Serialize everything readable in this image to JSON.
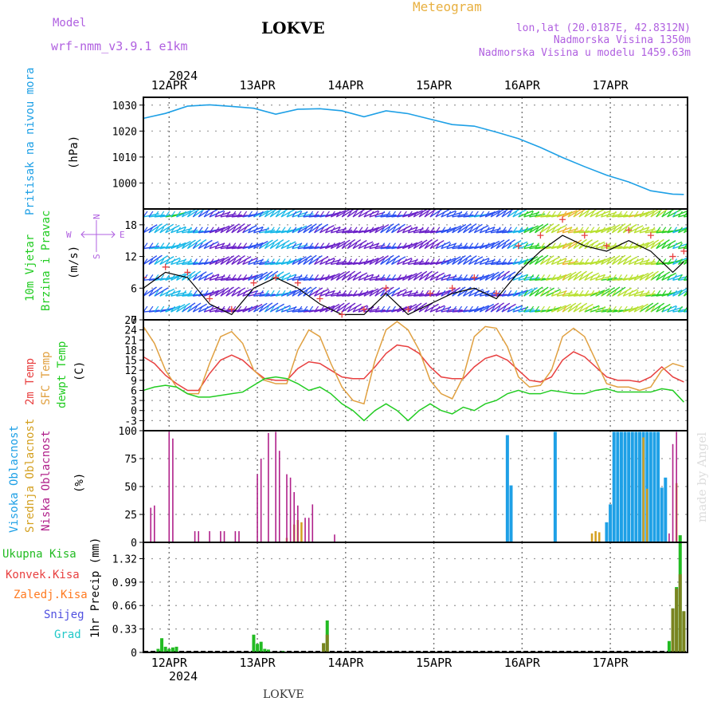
{
  "header": {
    "model_label": "Model",
    "model_name": "wrf-nmm_v3.9.1  e1km",
    "station": "LOKVE",
    "title": "Meteogram",
    "lonlat": "lon,lat (20.0187E, 42.8312N)",
    "alt_real": "Nadmorska Visina 1350m",
    "alt_model": "Nadmorska Visina u modelu 1459.63m",
    "year_top": "2024",
    "year_bottom": "2024",
    "footer": "LOKVE",
    "watermark": "made by Angel"
  },
  "colors": {
    "pressure": "#1ea0e6",
    "t2m": "#e84040",
    "tsfc": "#e0a040",
    "dewpt": "#22cc22",
    "cloud_high": "#1ea0e6",
    "cloud_mid": "#d4a020",
    "cloud_low": "#b0208a",
    "rain_total": "#22bb22",
    "rain_conv": "#e84040",
    "rain_frz": "#ff7a20",
    "snow": "#5050e0",
    "hail": "#20c8c8",
    "wind_label": "#22cc22",
    "wind_dir": "#b060e0"
  },
  "chart_data": [
    {
      "type": "line",
      "panel": "pressure",
      "ylabel": [
        "Pritisak na nivou mora",
        "(hPa)"
      ],
      "xticks": [
        "12APR",
        "13APR",
        "14APR",
        "15APR",
        "16APR",
        "17APR"
      ],
      "ylim": [
        990,
        1033
      ],
      "yticks": [
        1000,
        1010,
        1020,
        1030
      ],
      "grid": true,
      "x": [
        0,
        6,
        12,
        18,
        24,
        30,
        36,
        42,
        48,
        54,
        60,
        66,
        72,
        78,
        84,
        90,
        96,
        102,
        108,
        114,
        120,
        126,
        132,
        138,
        144,
        147
      ],
      "values": [
        1024.9,
        1026.8,
        1029.6,
        1030.1,
        1029.5,
        1028.8,
        1026.5,
        1028.4,
        1028.6,
        1027.8,
        1025.5,
        1027.8,
        1026.7,
        1024.6,
        1022.5,
        1021.9,
        1019.6,
        1017.1,
        1013.7,
        1009.8,
        1006.3,
        1003.0,
        1000.4,
        997.0,
        995.7,
        995.6
      ]
    },
    {
      "type": "barbs",
      "panel": "wind",
      "ylabel": [
        "10m Vjetar",
        "Brzina i Pravac",
        "(m/s)"
      ],
      "compass": [
        "N",
        "W",
        "E",
        "S"
      ],
      "ylim": [
        0,
        21
      ],
      "yticks": [
        0,
        6,
        12,
        18
      ],
      "x": [
        0,
        6,
        12,
        18,
        24,
        30,
        36,
        42,
        48,
        54,
        60,
        66,
        72,
        78,
        84,
        90,
        96,
        102,
        108,
        114,
        120,
        126,
        132,
        138,
        144,
        147
      ],
      "speed": [
        6,
        9,
        8,
        3,
        1,
        6,
        8,
        6,
        3,
        1,
        1,
        5,
        1,
        3,
        5,
        6,
        4,
        9,
        13,
        16,
        14,
        13,
        15,
        13,
        9,
        11
      ],
      "gust": [
        8,
        10,
        9,
        4,
        2,
        7,
        8,
        7,
        4,
        1,
        2,
        6,
        2,
        5,
        6,
        8,
        5,
        14,
        16,
        19,
        16,
        14,
        17,
        16,
        12,
        13
      ]
    },
    {
      "type": "line",
      "panel": "temperature",
      "ylabel": [
        "2m Temp",
        "SFC Temp",
        "dewpt Temp",
        "(C)"
      ],
      "series_labels": [
        "2m Temp",
        "SFC Temp",
        "dewpt Temp"
      ],
      "ylim": [
        -6,
        27
      ],
      "yticks": [
        -3,
        0,
        3,
        6,
        9,
        12,
        15,
        18,
        21,
        24,
        27
      ],
      "x": [
        0,
        3,
        6,
        9,
        12,
        15,
        18,
        21,
        24,
        27,
        30,
        33,
        36,
        39,
        42,
        45,
        48,
        51,
        54,
        57,
        60,
        63,
        66,
        69,
        72,
        75,
        78,
        81,
        84,
        87,
        90,
        93,
        96,
        99,
        102,
        105,
        108,
        111,
        114,
        117,
        120,
        123,
        126,
        129,
        132,
        135,
        138,
        141,
        144,
        147
      ],
      "series": [
        {
          "name": "2m Temp",
          "values": [
            16,
            14,
            10.5,
            8,
            6,
            6,
            11,
            15,
            16.5,
            15,
            12,
            9.5,
            9,
            9,
            12.5,
            14.5,
            14,
            12,
            10,
            9.5,
            9.5,
            13,
            17,
            19.5,
            19,
            17,
            13,
            10,
            9.5,
            9.5,
            13,
            15.5,
            16.5,
            15,
            12,
            9,
            8.5,
            10,
            15,
            17.5,
            16,
            13,
            10,
            9,
            9,
            8.5,
            10,
            13,
            10,
            8.5
          ]
        },
        {
          "name": "SFC Temp",
          "values": [
            25,
            20,
            12,
            7,
            5,
            5,
            14,
            22,
            23.5,
            20,
            12,
            9,
            8,
            8,
            18,
            24,
            22,
            14,
            7,
            3,
            2,
            15,
            24,
            26.5,
            24,
            18,
            9,
            5,
            3.5,
            10,
            22,
            25,
            24.5,
            19,
            10,
            7,
            7.5,
            12,
            22,
            24.5,
            22,
            15,
            8,
            7,
            7,
            6,
            7,
            12,
            14,
            13
          ]
        },
        {
          "name": "dewpt Temp",
          "values": [
            6,
            7,
            7.5,
            7,
            5,
            4,
            4,
            4.5,
            5,
            5.5,
            7.5,
            9.5,
            10,
            9.5,
            8,
            6,
            7,
            5,
            2,
            0,
            -3,
            0,
            2,
            0,
            -3,
            0,
            2,
            0,
            -1,
            1,
            0,
            2,
            3,
            5,
            6,
            5,
            5,
            6,
            5.5,
            5,
            5,
            6,
            6.5,
            5.5,
            5.5,
            5.5,
            5.5,
            6.5,
            6,
            2.5
          ]
        }
      ]
    },
    {
      "type": "bar",
      "panel": "clouds",
      "ylabel": [
        "Visoka Oblacnost",
        "Srednja Oblacnost",
        "Niska Oblacnost",
        "(%)"
      ],
      "ylim": [
        0,
        100
      ],
      "yticks": [
        0,
        25,
        50,
        75,
        100
      ],
      "series": [
        {
          "name": "Visoka Oblacnost",
          "bars": [
            [
              99,
              96
            ],
            [
              100,
              51
            ],
            [
              112,
              99
            ],
            [
              126,
              18
            ],
            [
              127,
              34
            ],
            [
              128,
              99
            ],
            [
              129,
              99
            ],
            [
              130,
              99
            ],
            [
              131,
              99
            ],
            [
              132,
              99
            ],
            [
              133,
              99
            ],
            [
              134,
              99
            ],
            [
              135,
              99
            ],
            [
              136,
              99
            ],
            [
              137,
              99
            ],
            [
              138,
              99
            ],
            [
              139,
              99
            ],
            [
              140,
              99
            ],
            [
              141,
              49
            ],
            [
              142,
              58
            ]
          ]
        },
        {
          "name": "Srednja Oblacnost",
          "bars": [
            [
              39,
              4
            ],
            [
              41,
              16
            ],
            [
              42,
              20
            ],
            [
              43,
              18
            ],
            [
              122,
              8
            ],
            [
              123,
              10
            ],
            [
              124,
              9
            ],
            [
              136,
              94
            ],
            [
              137,
              48
            ],
            [
              145,
              53
            ]
          ]
        },
        {
          "name": "Niska Oblacnost",
          "bars": [
            [
              2,
              31
            ],
            [
              3,
              33
            ],
            [
              7,
              99
            ],
            [
              8,
              93
            ],
            [
              14,
              10
            ],
            [
              15,
              10
            ],
            [
              18,
              10
            ],
            [
              21,
              10
            ],
            [
              22,
              10
            ],
            [
              25,
              10
            ],
            [
              26,
              10
            ],
            [
              31,
              61
            ],
            [
              32,
              75
            ],
            [
              34,
              98
            ],
            [
              36,
              99
            ],
            [
              37,
              82
            ],
            [
              39,
              61
            ],
            [
              40,
              58
            ],
            [
              41,
              45
            ],
            [
              42,
              33
            ],
            [
              44,
              22
            ],
            [
              45,
              22
            ],
            [
              46,
              34
            ],
            [
              52,
              7
            ],
            [
              143,
              8
            ],
            [
              144,
              88
            ],
            [
              145,
              99
            ]
          ]
        }
      ]
    },
    {
      "type": "bar",
      "panel": "precip",
      "ylabel": [
        "1hr Precip (mm)"
      ],
      "legend": [
        "Ukupna Kisa",
        "Konvek.Kisa",
        "Zaledj.Kisa",
        "Snijeg",
        "Grad"
      ],
      "ylim": [
        0,
        1.55
      ],
      "yticks": [
        0,
        0.33,
        0.66,
        0.99,
        1.32
      ],
      "series": [
        {
          "name": "Ukupna Kisa",
          "bars": [
            [
              4,
              0.05
            ],
            [
              5,
              0.2
            ],
            [
              6,
              0.08
            ],
            [
              7,
              0.05
            ],
            [
              8,
              0.07
            ],
            [
              9,
              0.08
            ],
            [
              30,
              0.25
            ],
            [
              31,
              0.12
            ],
            [
              32,
              0.15
            ],
            [
              33,
              0.05
            ],
            [
              34,
              0.04
            ],
            [
              38,
              0.02
            ],
            [
              49,
              0.13
            ],
            [
              50,
              0.45
            ],
            [
              143,
              0.16
            ],
            [
              144,
              0.62
            ],
            [
              145,
              0.92
            ],
            [
              146,
              1.65
            ],
            [
              147,
              0.58
            ]
          ]
        },
        {
          "name": "Konvek.Kisa",
          "bars": [
            [
              49,
              0.13
            ],
            [
              50,
              0.25
            ],
            [
              144,
              0.62
            ],
            [
              145,
              0.9
            ],
            [
              146,
              1.1
            ],
            [
              147,
              0.58
            ]
          ]
        }
      ]
    }
  ]
}
